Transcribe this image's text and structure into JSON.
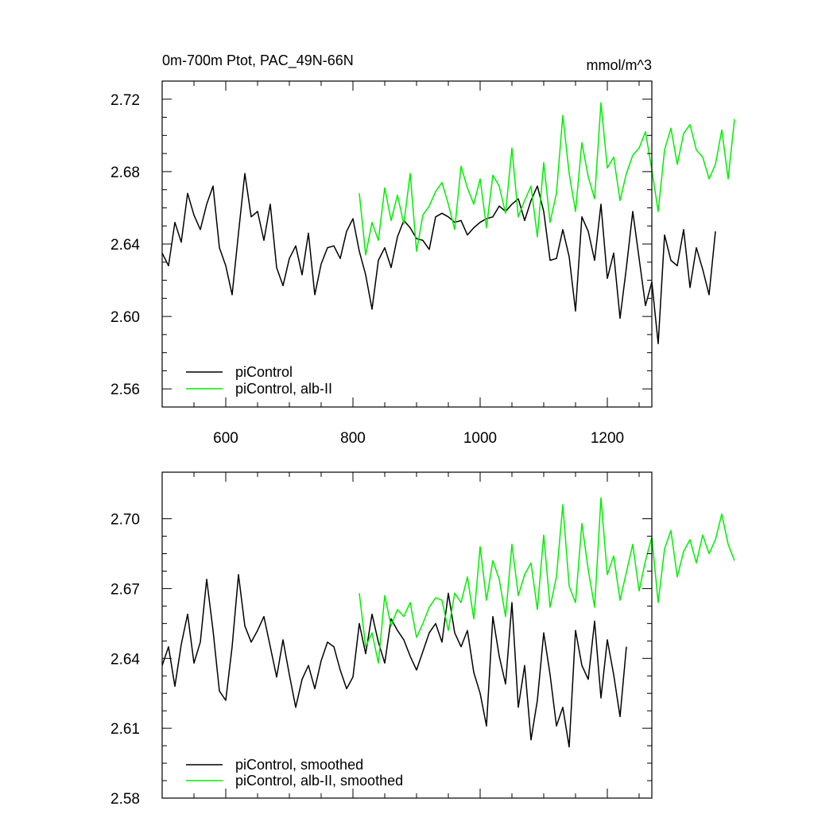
{
  "colors": {
    "control": "#000000",
    "albII": "#00ee00",
    "frame": "#000000"
  },
  "chart_data": [
    {
      "type": "line",
      "title": "0m-700m Ptot, PAC_49N-66N",
      "units": "mmol/m^3",
      "xlim": [
        500,
        1270
      ],
      "ylim": [
        2.55,
        2.73
      ],
      "xticks": [
        600,
        800,
        1000,
        1200
      ],
      "xtick_labels": [
        "600",
        "800",
        "1000",
        "1200"
      ],
      "yticks": [
        2.56,
        2.6,
        2.64,
        2.68,
        2.72
      ],
      "ytick_labels": [
        "2.56",
        "2.60",
        "2.64",
        "2.68",
        "2.72"
      ],
      "legend_position": "bottom-left",
      "series": [
        {
          "name": "piControl",
          "color": "#000000",
          "x_start": 500,
          "x_step": 10,
          "values": [
            2.635,
            2.628,
            2.652,
            2.641,
            2.668,
            2.656,
            2.648,
            2.662,
            2.672,
            2.638,
            2.628,
            2.612,
            2.646,
            2.679,
            2.655,
            2.658,
            2.642,
            2.662,
            2.627,
            2.617,
            2.632,
            2.639,
            2.623,
            2.646,
            2.612,
            2.629,
            2.638,
            2.639,
            2.632,
            2.647,
            2.654,
            2.636,
            2.623,
            2.604,
            2.631,
            2.638,
            2.627,
            2.644,
            2.653,
            2.649,
            2.643,
            2.642,
            2.637,
            2.655,
            2.657,
            2.655,
            2.652,
            2.653,
            2.645,
            2.649,
            2.652,
            2.654,
            2.655,
            2.661,
            2.658,
            2.662,
            2.665,
            2.653,
            2.664,
            2.672,
            2.658,
            2.631,
            2.632,
            2.648,
            2.633,
            2.603,
            2.655,
            2.647,
            2.631,
            2.662,
            2.621,
            2.635,
            2.599,
            2.627,
            2.658,
            2.632,
            2.606,
            2.619,
            2.585,
            2.645,
            2.631,
            2.628,
            2.648,
            2.616,
            2.638,
            2.626,
            2.612,
            2.647
          ]
        },
        {
          "name": "piControl, alb-II",
          "color": "#00ee00",
          "x_start": 810,
          "x_step": 10,
          "values": [
            2.668,
            2.634,
            2.652,
            2.642,
            2.671,
            2.653,
            2.667,
            2.651,
            2.679,
            2.636,
            2.656,
            2.661,
            2.669,
            2.674,
            2.662,
            2.648,
            2.683,
            2.671,
            2.662,
            2.676,
            2.649,
            2.678,
            2.672,
            2.657,
            2.693,
            2.655,
            2.664,
            2.672,
            2.644,
            2.685,
            2.652,
            2.668,
            2.711,
            2.679,
            2.658,
            2.696,
            2.677,
            2.665,
            2.718,
            2.682,
            2.688,
            2.664,
            2.679,
            2.689,
            2.693,
            2.702,
            2.681,
            2.658,
            2.692,
            2.704,
            2.684,
            2.701,
            2.706,
            2.692,
            2.688,
            2.676,
            2.684,
            2.703,
            2.676,
            2.709
          ]
        }
      ]
    },
    {
      "type": "line",
      "title": "",
      "units": "",
      "xlim": [
        500,
        1270
      ],
      "ylim": [
        2.58,
        2.72
      ],
      "xticks": [
        600,
        800,
        1000,
        1200
      ],
      "xtick_labels": [],
      "yticks": [
        2.58,
        2.61,
        2.64,
        2.67,
        2.7
      ],
      "ytick_labels": [
        "2.58",
        "2.61",
        "2.64",
        "2.67",
        "2.70"
      ],
      "legend_position": "bottom-left",
      "series": [
        {
          "name": "piControl, smoothed",
          "color": "#000000",
          "x_start": 500,
          "x_step": 10,
          "values": [
            2.637,
            2.645,
            2.628,
            2.646,
            2.659,
            2.638,
            2.647,
            2.674,
            2.652,
            2.626,
            2.622,
            2.645,
            2.676,
            2.654,
            2.647,
            2.652,
            2.658,
            2.645,
            2.632,
            2.648,
            2.633,
            2.619,
            2.631,
            2.637,
            2.627,
            2.639,
            2.647,
            2.645,
            2.635,
            2.627,
            2.632,
            2.655,
            2.642,
            2.659,
            2.647,
            2.638,
            2.657,
            2.652,
            2.648,
            2.641,
            2.635,
            2.643,
            2.651,
            2.655,
            2.647,
            2.668,
            2.651,
            2.645,
            2.652,
            2.634,
            2.625,
            2.611,
            2.658,
            2.641,
            2.629,
            2.664,
            2.619,
            2.637,
            2.605,
            2.622,
            2.651,
            2.633,
            2.611,
            2.619,
            2.602,
            2.652,
            2.637,
            2.631,
            2.656,
            2.623,
            2.648,
            2.633,
            2.615,
            2.645
          ]
        },
        {
          "name": "piControl, alb-II, smoothed",
          "color": "#00ee00",
          "x_start": 810,
          "x_step": 10,
          "values": [
            2.668,
            2.645,
            2.651,
            2.638,
            2.667,
            2.654,
            2.661,
            2.658,
            2.664,
            2.649,
            2.655,
            2.662,
            2.666,
            2.665,
            2.652,
            2.668,
            2.664,
            2.675,
            2.657,
            2.688,
            2.665,
            2.682,
            2.674,
            2.658,
            2.689,
            2.667,
            2.676,
            2.681,
            2.661,
            2.693,
            2.662,
            2.675,
            2.706,
            2.671,
            2.664,
            2.698,
            2.678,
            2.662,
            2.709,
            2.676,
            2.684,
            2.665,
            2.677,
            2.689,
            2.669,
            2.682,
            2.692,
            2.664,
            2.687,
            2.695,
            2.675,
            2.686,
            2.691,
            2.681,
            2.693,
            2.685,
            2.691,
            2.702,
            2.689,
            2.682
          ]
        }
      ]
    }
  ]
}
